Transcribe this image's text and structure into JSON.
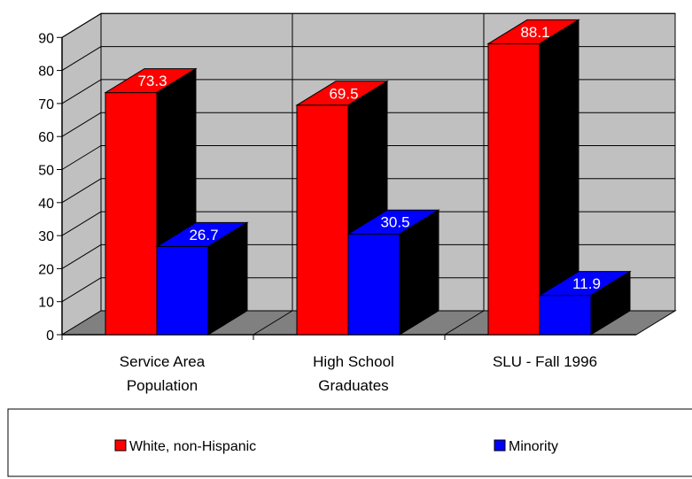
{
  "chart_data": {
    "type": "bar",
    "title": "",
    "xlabel": "",
    "ylabel": "",
    "ylim": [
      0,
      90
    ],
    "yticks": [
      0,
      10,
      20,
      30,
      40,
      50,
      60,
      70,
      80,
      90
    ],
    "categories": [
      [
        "Service Area",
        "Population"
      ],
      [
        "High School",
        "Graduates"
      ],
      [
        "SLU - Fall 1996"
      ]
    ],
    "series": [
      {
        "name": "White, non-Hispanic",
        "values": [
          73.3,
          69.5,
          88.1
        ],
        "color": "#ff0000"
      },
      {
        "name": "Minority",
        "values": [
          26.7,
          30.5,
          11.9
        ],
        "color": "#0000ff"
      }
    ],
    "grid": true,
    "three_d": true,
    "wall_color": "#c0c0c0",
    "floor_color": "#808080",
    "bar_side_color": "#000000",
    "legend_position": "bottom"
  }
}
